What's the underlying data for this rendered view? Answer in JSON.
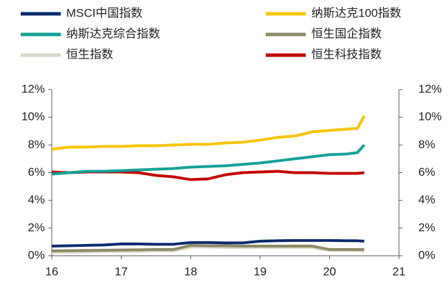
{
  "chart_data": {
    "type": "line",
    "x": [
      16,
      16.25,
      16.5,
      16.75,
      17,
      17.25,
      17.5,
      17.75,
      18,
      18.25,
      18.5,
      18.75,
      19,
      19.25,
      19.5,
      19.75,
      20,
      20.25,
      20.4,
      20.5
    ],
    "series": [
      {
        "name": "MSCI中国指数",
        "color": "#0a2a6e",
        "values": [
          0.7,
          0.72,
          0.75,
          0.78,
          0.85,
          0.85,
          0.83,
          0.83,
          0.95,
          0.95,
          0.93,
          0.93,
          1.05,
          1.08,
          1.1,
          1.1,
          1.1,
          1.08,
          1.08,
          1.05
        ]
      },
      {
        "name": "纳斯达克100指数",
        "color": "#f5c400",
        "values": [
          7.7,
          7.85,
          7.85,
          7.9,
          7.9,
          7.95,
          7.95,
          8.0,
          8.05,
          8.05,
          8.15,
          8.2,
          8.35,
          8.55,
          8.65,
          8.95,
          9.05,
          9.15,
          9.2,
          10.1
        ]
      },
      {
        "name": "纳斯达克综合指数",
        "color": "#14a096",
        "values": [
          5.9,
          6.0,
          6.1,
          6.1,
          6.15,
          6.2,
          6.25,
          6.3,
          6.4,
          6.45,
          6.5,
          6.6,
          6.7,
          6.85,
          7.0,
          7.15,
          7.3,
          7.35,
          7.45,
          8.0
        ]
      },
      {
        "name": "恒生国企指数",
        "color": "#8c8a66",
        "values": [
          0.35,
          0.37,
          0.38,
          0.4,
          0.42,
          0.43,
          0.45,
          0.45,
          0.75,
          0.72,
          0.72,
          0.7,
          0.7,
          0.7,
          0.7,
          0.7,
          0.45,
          0.45,
          0.45,
          0.45
        ]
      },
      {
        "name": "恒生指数",
        "color": "#d6d6c6",
        "values": [
          0.25,
          0.27,
          0.28,
          0.3,
          0.32,
          0.33,
          0.35,
          0.35,
          0.62,
          0.62,
          0.6,
          0.6,
          0.6,
          0.6,
          0.6,
          0.6,
          0.38,
          0.38,
          0.38,
          0.35
        ]
      },
      {
        "name": "恒生科技指数",
        "color": "#c00000",
        "values": [
          6.05,
          6.0,
          6.05,
          6.05,
          6.05,
          6.0,
          5.8,
          5.7,
          5.5,
          5.55,
          5.85,
          6.0,
          6.05,
          6.1,
          6.0,
          6.0,
          5.95,
          5.95,
          5.95,
          6.0
        ]
      }
    ],
    "xlim": [
      16,
      21
    ],
    "xticks": [
      16,
      17,
      18,
      19,
      20,
      21
    ],
    "ylim": [
      0,
      12
    ],
    "yticks": [
      {
        "value": 0,
        "label": "0%"
      },
      {
        "value": 2,
        "label": "2%"
      },
      {
        "value": 4,
        "label": "4%"
      },
      {
        "value": 6,
        "label": "6%"
      },
      {
        "value": 8,
        "label": "8%"
      },
      {
        "value": 10,
        "label": "10%"
      },
      {
        "value": 12,
        "label": "12%"
      }
    ],
    "y2lim": [
      0,
      12
    ],
    "y2ticks": [
      {
        "value": 0,
        "label": "0%"
      },
      {
        "value": 2,
        "label": "2%"
      },
      {
        "value": 4,
        "label": "4%"
      },
      {
        "value": 6,
        "label": "6%"
      },
      {
        "value": 8,
        "label": "8%"
      },
      {
        "value": 10,
        "label": "10%"
      },
      {
        "value": 12,
        "label": "12%"
      }
    ],
    "grid": false,
    "legend": "top"
  }
}
